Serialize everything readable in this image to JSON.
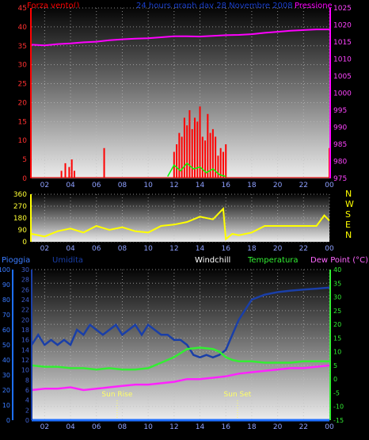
{
  "header": {
    "left_label": "Forza vento()",
    "title": "24 hours graph day  28 Novembre 2008",
    "right_label": "Pressione"
  },
  "colors": {
    "background": "#000000",
    "wind": "#ff0000",
    "gust": "#00ff00",
    "pressure": "#ff00ff",
    "direction": "#ffff00",
    "rain": "#1e6fff",
    "humidity": "#1a3fa8",
    "windchill": "#ffffff",
    "temperature": "#33ee33",
    "dewpoint": "#ff22ff",
    "sunmarker": "#ffff66"
  },
  "chart_data": [
    {
      "type": "line",
      "id": "wind_pressure",
      "title": "24 hours graph day  28 Novembre 2008",
      "left_axis_label": "Forza vento()",
      "right_axis_label": "Pressione",
      "x_ticks": [
        "02",
        "04",
        "06",
        "08",
        "10",
        "12",
        "14",
        "16",
        "18",
        "20",
        "22",
        "00"
      ],
      "xlim": [
        1,
        24
      ],
      "ylim_left": [
        0,
        45
      ],
      "yticks_left": [
        0,
        5,
        10,
        15,
        20,
        25,
        30,
        35,
        40,
        45
      ],
      "ylim_right": [
        975,
        1025
      ],
      "yticks_right": [
        975,
        980,
        985,
        990,
        995,
        1000,
        1005,
        1010,
        1015,
        1020,
        1025
      ],
      "series": [
        {
          "key": "pressure",
          "axis": "right",
          "x": [
            1,
            2,
            3,
            4,
            5,
            6,
            7,
            8,
            9,
            10,
            11,
            12,
            13,
            14,
            15,
            16,
            17,
            18,
            19,
            20,
            21,
            22,
            23,
            24
          ],
          "values": [
            1014.2,
            1014.0,
            1014.4,
            1014.6,
            1014.9,
            1015.1,
            1015.5,
            1015.8,
            1016.0,
            1016.1,
            1016.4,
            1016.7,
            1016.7,
            1016.6,
            1016.8,
            1017.0,
            1017.1,
            1017.3,
            1017.7,
            1018.0,
            1018.3,
            1018.5,
            1018.7,
            1018.7
          ]
        },
        {
          "key": "wind",
          "axis": "left",
          "style": "spikes",
          "x": [
            3.3,
            3.6,
            3.9,
            4.1,
            4.3,
            6.6,
            12.0,
            12.2,
            12.4,
            12.6,
            12.8,
            13.0,
            13.2,
            13.4,
            13.6,
            13.8,
            14.0,
            14.2,
            14.4,
            14.6,
            14.8,
            15.0,
            15.2,
            15.4,
            15.6,
            15.8,
            16.0,
            24.0
          ],
          "values": [
            2,
            4,
            3,
            5,
            2,
            8,
            7,
            9,
            12,
            11,
            16,
            14,
            18,
            13,
            16,
            15,
            19,
            11,
            10,
            17,
            12,
            13,
            11,
            6,
            8,
            7,
            9,
            8
          ]
        },
        {
          "key": "gust",
          "axis": "left",
          "x": [
            11.5,
            12.0,
            12.5,
            13.0,
            13.5,
            14.0,
            14.5,
            15.0,
            15.5,
            16.0
          ],
          "values": [
            0.5,
            3.5,
            2.0,
            4.0,
            2.5,
            3.0,
            1.5,
            2.5,
            1.0,
            0.5
          ]
        }
      ]
    },
    {
      "type": "line",
      "id": "wind_direction",
      "x_ticks": [
        "02",
        "04",
        "06",
        "08",
        "10",
        "12",
        "14",
        "16",
        "18",
        "20",
        "22",
        "00"
      ],
      "xlim": [
        1,
        24
      ],
      "ylim": [
        0,
        360
      ],
      "yticks": [
        0,
        90,
        180,
        270,
        360
      ],
      "compass_labels": [
        "N",
        "W",
        "S",
        "E",
        "N"
      ],
      "series": [
        {
          "key": "direction",
          "x": [
            1,
            2,
            3,
            4,
            5,
            6,
            7,
            8,
            9,
            10,
            11,
            12,
            13,
            14,
            15,
            15.8,
            16,
            16.5,
            17,
            18,
            19,
            20,
            21,
            22,
            23,
            23.6,
            24
          ],
          "values": [
            60,
            40,
            80,
            100,
            70,
            120,
            90,
            110,
            80,
            70,
            120,
            130,
            150,
            190,
            170,
            250,
            20,
            60,
            50,
            70,
            120,
            120,
            120,
            120,
            120,
            200,
            160
          ]
        }
      ]
    },
    {
      "type": "line",
      "id": "rain_humidity_temperature",
      "legend": [
        "Pioggia",
        "Umidita",
        "Windchill",
        "Temperatura",
        "Dew Point (°C)"
      ],
      "x_ticks": [
        "02",
        "04",
        "06",
        "08",
        "10",
        "12",
        "14",
        "16",
        "18",
        "20",
        "22",
        "00"
      ],
      "xlim": [
        1,
        24
      ],
      "ylim_rain": [
        0,
        100
      ],
      "yticks_rain": [
        0,
        10,
        20,
        30,
        40,
        50,
        60,
        70,
        80,
        90,
        100
      ],
      "ylim_humidity": [
        0,
        30
      ],
      "yticks_humidity": [
        0,
        2,
        4,
        6,
        8,
        10,
        12,
        14,
        16,
        18,
        20,
        22,
        24,
        26,
        28,
        30
      ],
      "ylim_temperature": [
        -15,
        40
      ],
      "yticks_temperature": [
        -15,
        -10,
        -5,
        0,
        5,
        10,
        15,
        20,
        25,
        30,
        35,
        40
      ],
      "annotations": [
        {
          "label": "Sun Rise",
          "x": 7.6
        },
        {
          "label": "Sun Set",
          "x": 16.9
        }
      ],
      "series": [
        {
          "key": "humidity",
          "axis": "humidity",
          "x": [
            1,
            1.5,
            2,
            2.5,
            3,
            3.5,
            4,
            4.5,
            5,
            5.5,
            6,
            6.5,
            7,
            7.5,
            8,
            8.5,
            9,
            9.5,
            10,
            10.5,
            11,
            11.5,
            12,
            12.5,
            13,
            13.5,
            14,
            14.5,
            15,
            15.5,
            16,
            16.5,
            17,
            17.5,
            18,
            19,
            20,
            21,
            22,
            23,
            24
          ],
          "values": [
            15,
            17,
            15,
            16,
            15,
            16,
            15,
            18,
            17,
            19,
            18,
            17,
            18,
            19,
            17,
            18,
            19,
            17,
            19,
            18,
            17,
            17,
            16,
            16,
            15,
            13,
            12.5,
            13,
            12.5,
            13,
            14,
            17,
            20,
            22,
            24,
            25,
            25.5,
            25.8,
            26,
            26.2,
            26.4
          ]
        },
        {
          "key": "temperature",
          "axis": "temperature",
          "x": [
            1,
            2,
            3,
            4,
            5,
            6,
            7,
            8,
            9,
            10,
            11,
            12,
            12.5,
            13,
            14,
            15,
            15.5,
            16,
            16.5,
            17,
            18,
            19,
            20,
            21,
            22,
            23,
            24
          ],
          "values": [
            5,
            4.5,
            4.5,
            4,
            4,
            3.5,
            4,
            3.5,
            3.5,
            4,
            6,
            8,
            9.5,
            11,
            11.5,
            11,
            10,
            8,
            7,
            6.5,
            6.5,
            6,
            6,
            6,
            6.5,
            6.5,
            6.5
          ]
        },
        {
          "key": "dewpoint",
          "axis": "temperature",
          "x": [
            1,
            2,
            3,
            4,
            5,
            6,
            7,
            8,
            9,
            10,
            11,
            12,
            13,
            14,
            15,
            16,
            17,
            18,
            19,
            20,
            21,
            22,
            23,
            24
          ],
          "values": [
            -4,
            -3.5,
            -3.5,
            -3,
            -4,
            -3.5,
            -3,
            -2.5,
            -2,
            -2,
            -1.5,
            -1,
            0,
            0,
            0.5,
            1,
            2,
            2.5,
            3,
            3.5,
            4,
            4,
            4.5,
            5
          ]
        },
        {
          "key": "rain",
          "axis": "rain",
          "x": [
            1,
            24
          ],
          "values": [
            0,
            0
          ]
        }
      ]
    }
  ]
}
